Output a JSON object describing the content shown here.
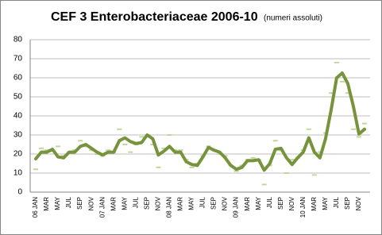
{
  "chart_data": {
    "type": "line",
    "title": "CEF 3 Enterobacteriaceae 2006-10",
    "subtitle": "(numeri assoluti)",
    "categories": [
      "06 JAN",
      null,
      "MAR",
      null,
      "MAY",
      null,
      "JUL",
      null,
      "SEP",
      null,
      "NOV",
      null,
      "07 JAN",
      null,
      "MAR",
      null,
      "MAY",
      null,
      "JUL",
      null,
      "SEP",
      null,
      "NOV",
      null,
      "08 JAN",
      null,
      "MAR",
      null,
      "MAY",
      null,
      "JUL",
      null,
      "SEP",
      null,
      "NOV",
      null,
      "09 JAN",
      null,
      "MAR",
      null,
      "MAY",
      null,
      "JUL",
      null,
      "SEP",
      null,
      "NOV",
      null,
      "10 JAN",
      null,
      "MAR",
      null,
      "MAY",
      null,
      "JUL",
      null,
      "SEP",
      null,
      "NOV",
      null
    ],
    "series": [
      {
        "color": "#77933c",
        "style": "line",
        "values": [
          17.5,
          21,
          21,
          22.5,
          18.5,
          18,
          21,
          21,
          24,
          25,
          23,
          21,
          19.5,
          21,
          21,
          27,
          28.5,
          26.5,
          25.5,
          26,
          30,
          28,
          19.5,
          21.5,
          24,
          21,
          21,
          16,
          14.5,
          14,
          18.5,
          23.5,
          22,
          21,
          18,
          14,
          12,
          13,
          16.5,
          16.5,
          17,
          11.5,
          15,
          22.5,
          23,
          18,
          14.5,
          18,
          21,
          28.5,
          21,
          18,
          28,
          43,
          60,
          62.5,
          57,
          45,
          30.5,
          33
        ]
      },
      {
        "color": "#c3d69b",
        "style": "dash",
        "values": [
          12,
          23,
          22,
          22,
          24,
          19,
          21,
          22,
          27,
          24,
          22,
          20,
          19,
          22,
          21,
          33,
          25,
          21,
          25,
          29,
          30,
          25,
          13,
          23,
          30,
          22,
          22,
          17,
          13,
          15,
          19,
          24,
          22,
          20,
          19,
          14,
          11,
          14,
          17,
          18,
          17,
          4,
          14,
          27,
          22,
          10,
          17,
          18,
          22,
          33,
          9,
          21,
          31,
          52,
          68,
          58,
          52,
          33,
          29,
          36
        ]
      }
    ],
    "ylim": [
      0,
      80
    ],
    "yticks": [
      0,
      10,
      20,
      30,
      40,
      50,
      60,
      70,
      80
    ],
    "grid": true
  }
}
